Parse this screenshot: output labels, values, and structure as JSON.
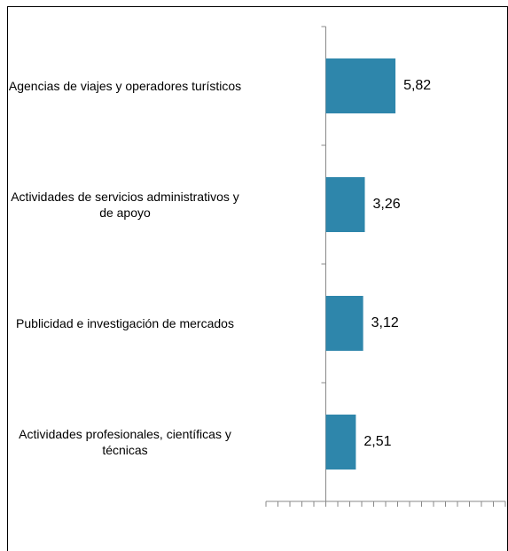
{
  "chart_data": {
    "type": "bar",
    "orientation": "horizontal",
    "categories": [
      "Agencias de viajes y operadores turísticos",
      "Actividades de servicios administrativos y de apoyo",
      "Publicidad e investigación de mercados",
      "Actividades profesionales, científicas y técnicas"
    ],
    "values": [
      5.82,
      3.26,
      3.12,
      2.51
    ],
    "value_labels": [
      "5,82",
      "3,26",
      "3,12",
      "2,51"
    ],
    "color": "#2e86ab",
    "xlim": [
      -5,
      15
    ],
    "xticks": [
      -5,
      -4,
      -3,
      -2,
      -1,
      0,
      1,
      2,
      3,
      4,
      5,
      6,
      7,
      8,
      9,
      10,
      11,
      12,
      13,
      14,
      15
    ]
  }
}
